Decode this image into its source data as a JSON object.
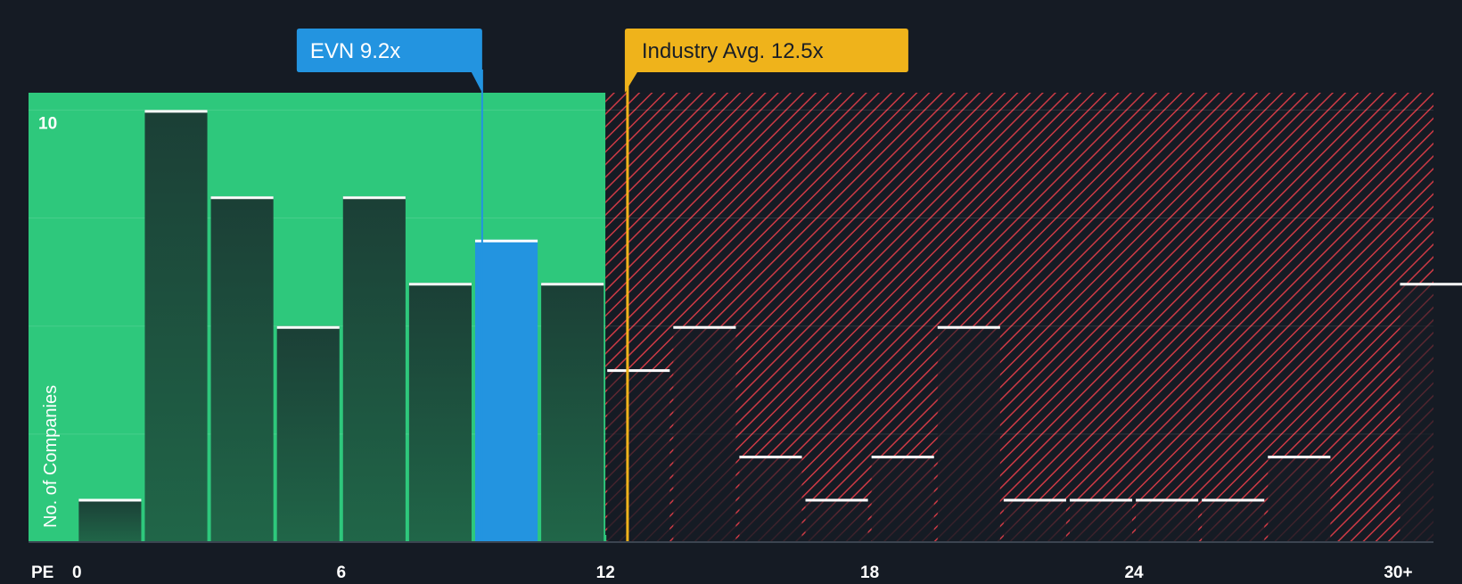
{
  "chart_data": {
    "type": "bar",
    "title": "",
    "xlabel": "PE",
    "ylabel": "No. of Companies",
    "bin_width": 1.5,
    "x_range": [
      -1.1,
      30.8
    ],
    "ylim": [
      0,
      10.4
    ],
    "y_ticks": [
      10
    ],
    "x_ticks": [
      "0",
      "6",
      "12",
      "18",
      "24",
      "30+"
    ],
    "x_tick_values": [
      0,
      6,
      12,
      18,
      24,
      30
    ],
    "bins": [
      {
        "start": 0,
        "value": 1
      },
      {
        "start": 1.5,
        "value": 10
      },
      {
        "start": 3.0,
        "value": 8
      },
      {
        "start": 4.5,
        "value": 5
      },
      {
        "start": 6.0,
        "value": 8
      },
      {
        "start": 7.5,
        "value": 6
      },
      {
        "start": 9.0,
        "value": 7,
        "highlight": true
      },
      {
        "start": 10.5,
        "value": 6
      },
      {
        "start": 12.0,
        "value": 4
      },
      {
        "start": 13.5,
        "value": 5
      },
      {
        "start": 15.0,
        "value": 2
      },
      {
        "start": 16.5,
        "value": 1
      },
      {
        "start": 18.0,
        "value": 2
      },
      {
        "start": 19.5,
        "value": 5
      },
      {
        "start": 21.0,
        "value": 1
      },
      {
        "start": 22.5,
        "value": 1
      },
      {
        "start": 24.0,
        "value": 1
      },
      {
        "start": 25.5,
        "value": 1
      },
      {
        "start": 27.0,
        "value": 2
      },
      {
        "start": 28.5,
        "value": 0
      },
      {
        "start": 30.0,
        "value": 6
      }
    ],
    "fair_zone_end": 12,
    "company": {
      "label": "EVN 9.2x",
      "value": 9.2
    },
    "industry": {
      "label": "Industry Avg. 12.5x",
      "value": 12.5
    },
    "colors": {
      "background": "#151b24",
      "fair_zone": "#2ec87c",
      "bar_dark": "#1b4a3a",
      "highlight": "#2394e0",
      "over_zone": "#cd3a45",
      "company_label": "#2394e0",
      "industry_label": "#efb31b",
      "cap": "#ffffff"
    }
  }
}
